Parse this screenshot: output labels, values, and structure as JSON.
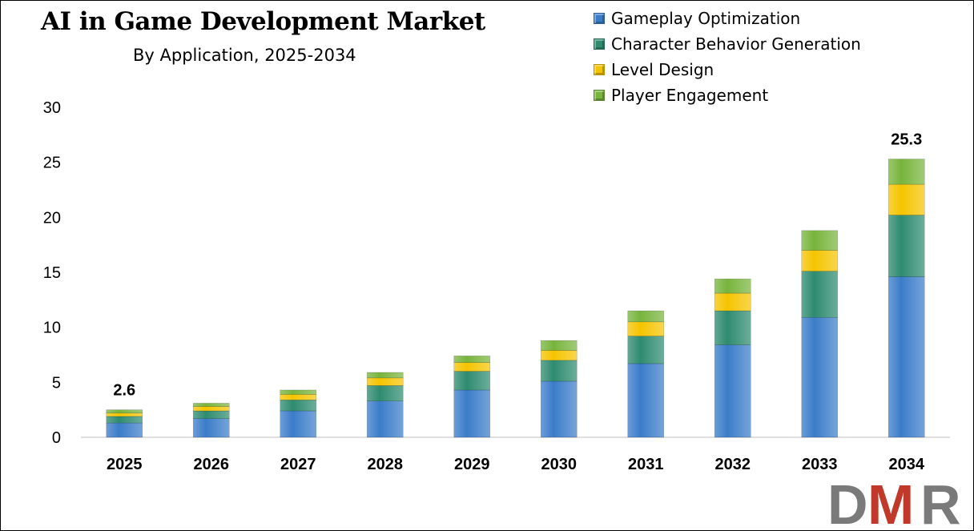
{
  "chart_data": {
    "type": "bar",
    "stacked": true,
    "title": "AI in Game Development Market",
    "subtitle": "By Application, 2025-2034",
    "categories": [
      "2025",
      "2026",
      "2027",
      "2028",
      "2029",
      "2030",
      "2031",
      "2032",
      "2033",
      "2034"
    ],
    "series": [
      {
        "name": "Gameplay Optimization",
        "color": "#3b7cc9",
        "values": [
          1.3,
          1.7,
          2.4,
          3.3,
          4.3,
          5.1,
          6.7,
          8.4,
          10.9,
          14.6
        ]
      },
      {
        "name": "Character Behavior Generation",
        "color": "#2e8b6f",
        "values": [
          0.6,
          0.7,
          1.0,
          1.4,
          1.7,
          1.9,
          2.5,
          3.1,
          4.2,
          5.6
        ]
      },
      {
        "name": "Level Design",
        "color": "#f5c400",
        "values": [
          0.3,
          0.4,
          0.5,
          0.7,
          0.8,
          0.9,
          1.3,
          1.6,
          1.9,
          2.8
        ]
      },
      {
        "name": "Player Engagement",
        "color": "#78b43c",
        "values": [
          0.3,
          0.3,
          0.4,
          0.5,
          0.6,
          0.9,
          1.0,
          1.3,
          1.8,
          2.3
        ]
      }
    ],
    "annotations": [
      {
        "category": "2025",
        "label": "2.6"
      },
      {
        "category": "2034",
        "label": "25.3"
      }
    ],
    "xlabel": "",
    "ylabel": "",
    "ylim": [
      0,
      30
    ],
    "yticks": [
      "0",
      "5",
      "10",
      "15",
      "20",
      "25",
      "30"
    ],
    "grid": false,
    "legend_position": "top-right"
  },
  "logo": {
    "text": "DMR",
    "colors": [
      "#7a7a7a",
      "#c0392b"
    ]
  }
}
